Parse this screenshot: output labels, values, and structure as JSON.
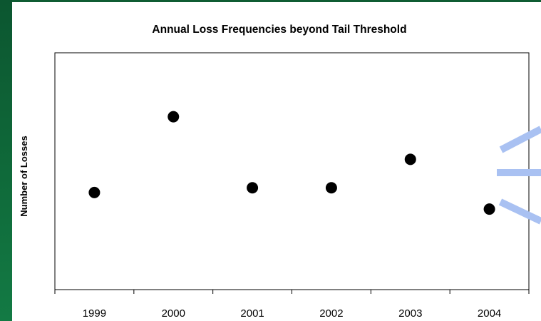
{
  "chart_data": {
    "type": "scatter",
    "title": "Annual Loss Frequencies beyond Tail Threshold",
    "xlabel": "",
    "ylabel": "Number of Losses",
    "categories": [
      "1999",
      "2000",
      "2001",
      "2002",
      "2003",
      "2004"
    ],
    "series": [
      {
        "values": [
          4.1,
          7.3,
          4.3,
          4.3,
          5.5,
          3.4
        ]
      }
    ],
    "ylim": [
      0,
      10
    ],
    "grid": false,
    "legend": "none",
    "colors": {
      "marker": "#000000",
      "frame_green": "#0f5c33",
      "decoration_blue": "#a9c1f2"
    }
  }
}
